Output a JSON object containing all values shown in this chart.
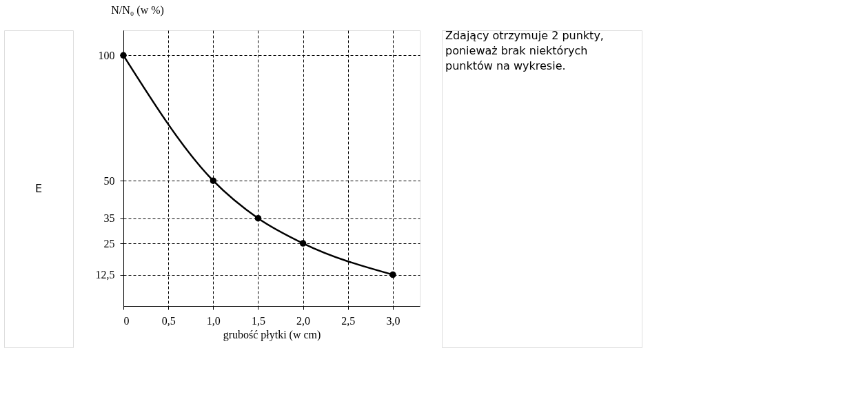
{
  "chart_data": {
    "type": "line",
    "xlabel": "grubość płytki (w cm)",
    "ylabel": "N/N₀ (w %)",
    "x": [
      0,
      1.0,
      1.5,
      2.0,
      3.0
    ],
    "series": [
      {
        "color": "#000000",
        "values": [
          100,
          50,
          35,
          25,
          12.5
        ]
      }
    ],
    "xlim": [
      0,
      3.3
    ],
    "xticks": [
      0,
      {
        "value": 0.5,
        "label": "0,5"
      },
      {
        "value": 1.0,
        "label": "1,0"
      },
      {
        "value": 1.5,
        "label": "1,5"
      },
      {
        "value": 2.0,
        "label": "2,0"
      },
      {
        "value": 2.5,
        "label": "2,5"
      },
      {
        "value": 3.0,
        "label": "3,0"
      }
    ],
    "ylim": [
      0,
      110
    ],
    "yticks": [
      {
        "value": 12.5,
        "label": "12,5"
      },
      25,
      35,
      50,
      100
    ],
    "grid": true,
    "marker": "circle",
    "line_style": "solid",
    "annotations": [
      "E",
      "Zdający otrzymuje 2 punkty, ponieważ brak niektórych punktów na wykresie."
    ]
  }
}
